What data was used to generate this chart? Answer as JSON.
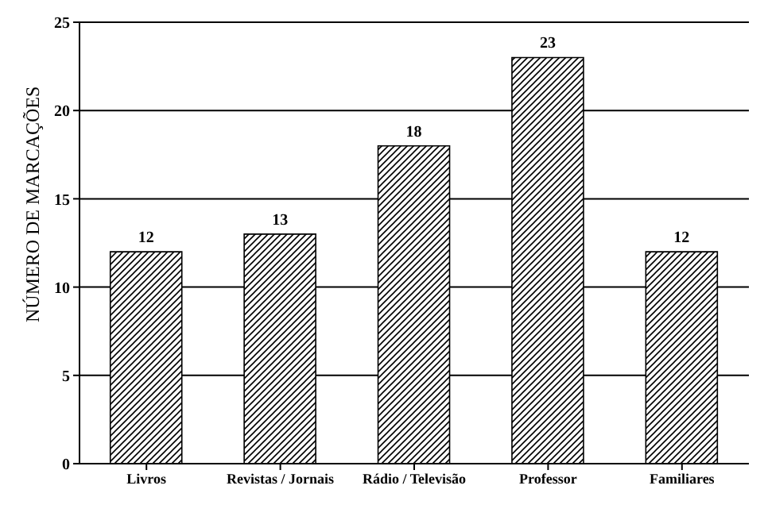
{
  "chart_data": {
    "type": "bar",
    "ylabel": "NÚMERO DE MARCAÇÕES",
    "categories": [
      "Livros",
      "Revistas / Jornais",
      "Rádio / Televisão",
      "Professor",
      "Familiares"
    ],
    "values": [
      12,
      13,
      18,
      23,
      12
    ],
    "color": "#000000",
    "ylim": [
      0,
      25
    ],
    "yticks": [
      0,
      5,
      10,
      15,
      20,
      25
    ],
    "grid": "y",
    "data_labels": true
  }
}
